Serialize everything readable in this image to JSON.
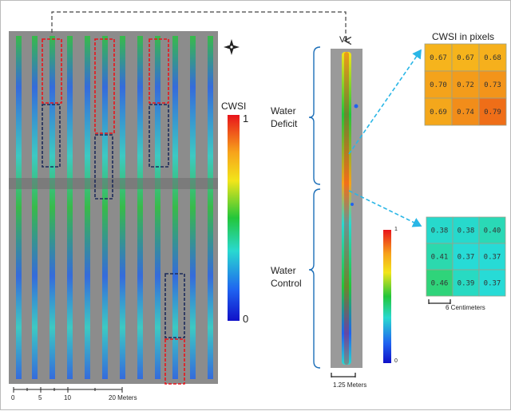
{
  "left_panel": {
    "legend": {
      "title": "CWSI",
      "max_label": "1",
      "min_label": "0",
      "colors": [
        "#e8141b",
        "#f7a21b",
        "#f2e51a",
        "#23c63a",
        "#29d9d0",
        "#1f63f0",
        "#1010c8"
      ]
    },
    "scale_bar": {
      "ticks": [
        "0",
        "5",
        "10",
        "20 Meters"
      ]
    },
    "north_arrow": {
      "label": "N",
      "icon": "north-arrow-icon"
    }
  },
  "vine_row": {
    "label": "VL",
    "treatments": [
      "Water Deficit",
      "Water Control"
    ],
    "legend": {
      "max_label": "1",
      "min_label": "0"
    },
    "scale_bar_label": "1.25 Meters"
  },
  "pixel_grids": {
    "title": "CWSI in pixels",
    "deficit": {
      "values": [
        [
          "0.67",
          "0.67",
          "0.68"
        ],
        [
          "0.70",
          "0.72",
          "0.73"
        ],
        [
          "0.69",
          "0.74",
          "0.79"
        ]
      ],
      "colors": [
        [
          "#f6b41c",
          "#f6b41c",
          "#f6b01c"
        ],
        [
          "#f4a31b",
          "#f39c1b",
          "#f3941a"
        ],
        [
          "#f4a71b",
          "#f28d1a",
          "#ef6e18"
        ]
      ]
    },
    "control": {
      "values": [
        [
          "0.38",
          "0.38",
          "0.40"
        ],
        [
          "0.41",
          "0.37",
          "0.37"
        ],
        [
          "0.46",
          "0.39",
          "0.37"
        ]
      ],
      "colors": [
        [
          "#27d9cc",
          "#27d9cc",
          "#2ad9b6"
        ],
        [
          "#2bd9ae",
          "#27dbd6",
          "#27dbd6"
        ],
        [
          "#2fd47a",
          "#28dac2",
          "#27dbd6"
        ]
      ]
    },
    "scale_label": "6 Centimeters"
  }
}
